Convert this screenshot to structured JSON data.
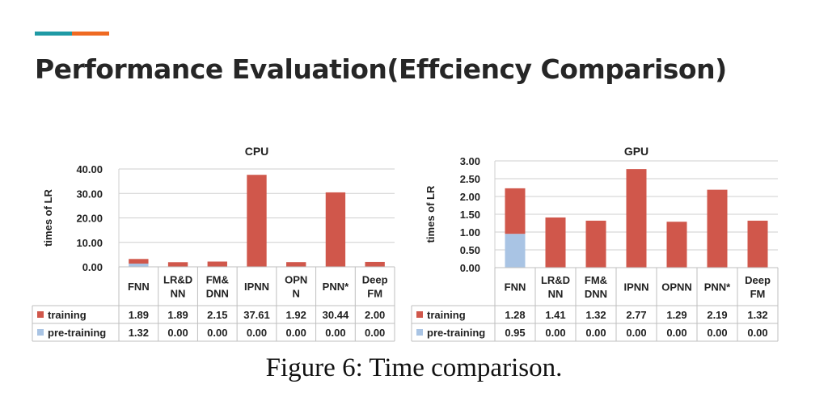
{
  "slide": {
    "title": "Performance Evaluation(Effciency Comparison)",
    "caption": "Figure 6: Time comparison.",
    "accent_colors": [
      "#1f9aa5",
      "#ef6a22"
    ]
  },
  "chart_data": [
    {
      "type": "bar",
      "stacked": true,
      "title": "CPU",
      "ylabel": "times of LR",
      "ylim": [
        0,
        40
      ],
      "yticks": [
        "0.00",
        "10.00",
        "20.00",
        "30.00",
        "40.00"
      ],
      "ytick_values": [
        0,
        10,
        20,
        30,
        40
      ],
      "categories": [
        [
          "FNN"
        ],
        [
          "LR&D",
          "NN"
        ],
        [
          "FM&",
          "DNN"
        ],
        [
          "IPNN"
        ],
        [
          "OPN",
          "N"
        ],
        [
          "PNN*"
        ],
        [
          "Deep",
          "FM"
        ]
      ],
      "series": [
        {
          "name": "pre-training",
          "color": "#a9c4e4",
          "values": [
            1.32,
            0.0,
            0.0,
            0.0,
            0.0,
            0.0,
            0.0
          ],
          "labels": [
            "1.32",
            "0.00",
            "0.00",
            "0.00",
            "0.00",
            "0.00",
            "0.00"
          ]
        },
        {
          "name": "training",
          "color": "#d0574b",
          "values": [
            1.89,
            1.89,
            2.15,
            37.61,
            1.92,
            30.44,
            2.0
          ],
          "labels": [
            "1.89",
            "1.89",
            "2.15",
            "37.61",
            "1.92",
            "30.44",
            "2.00"
          ]
        }
      ],
      "table_rows": [
        "training",
        "pre-training"
      ],
      "grid": true
    },
    {
      "type": "bar",
      "stacked": true,
      "title": "GPU",
      "ylabel": "times of LR",
      "ylim": [
        0,
        3
      ],
      "yticks": [
        "0.00",
        "0.50",
        "1.00",
        "1.50",
        "2.00",
        "2.50",
        "3.00"
      ],
      "ytick_values": [
        0,
        0.5,
        1,
        1.5,
        2,
        2.5,
        3
      ],
      "categories": [
        [
          "FNN"
        ],
        [
          "LR&D",
          "NN"
        ],
        [
          "FM&",
          "DNN"
        ],
        [
          "IPNN"
        ],
        [
          "OPNN"
        ],
        [
          "PNN*"
        ],
        [
          "Deep",
          "FM"
        ]
      ],
      "series": [
        {
          "name": "pre-training",
          "color": "#a9c4e4",
          "values": [
            0.95,
            0.0,
            0.0,
            0.0,
            0.0,
            0.0,
            0.0
          ],
          "labels": [
            "0.95",
            "0.00",
            "0.00",
            "0.00",
            "0.00",
            "0.00",
            "0.00"
          ]
        },
        {
          "name": "training",
          "color": "#d0574b",
          "values": [
            1.28,
            1.41,
            1.32,
            2.77,
            1.29,
            2.19,
            1.32
          ],
          "labels": [
            "1.28",
            "1.41",
            "1.32",
            "2.77",
            "1.29",
            "2.19",
            "1.32"
          ]
        }
      ],
      "table_rows": [
        "training",
        "pre-training"
      ],
      "grid": true
    }
  ]
}
